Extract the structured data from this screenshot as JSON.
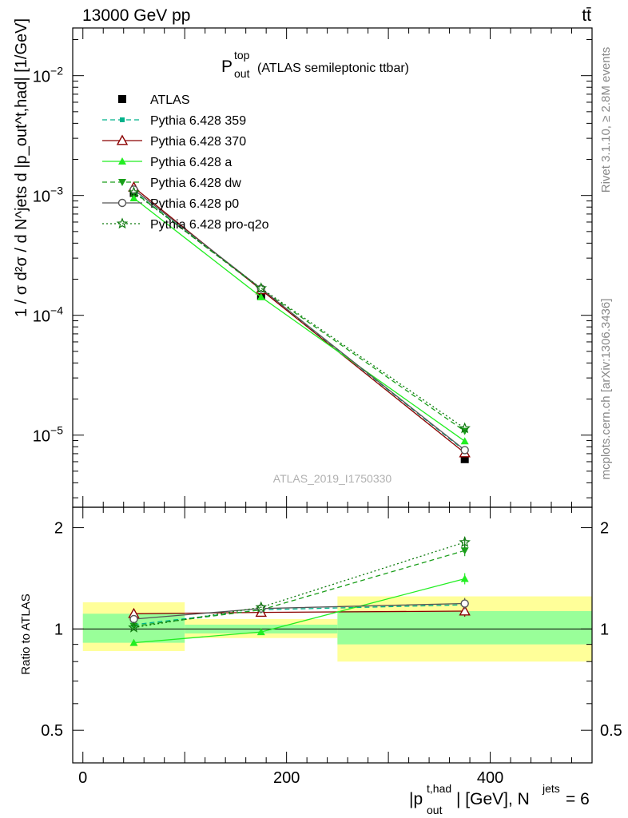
{
  "header": {
    "left": "13000 GeV pp",
    "right": "tt̄"
  },
  "side": {
    "rivet": "Rivet 3.1.10, ≥ 2.8M events",
    "mcplots": "mcplots.cern.ch [arXiv:1306.3436]"
  },
  "watermark": "ATLAS_2019_I1750330",
  "chart_data": [
    {
      "type": "line",
      "title": "P_out^top (ATLAS semileptonic ttbar)",
      "title_parts": {
        "main": "P",
        "sup": "top",
        "sub": "out",
        "rest": "(ATLAS semileptonic ttbar)"
      },
      "ylabel": "1 / σ d²σ / d N^jets d |p_out^t,had| [1/GeV]",
      "y_scale": "log",
      "xlim": [
        -10,
        500
      ],
      "ylim": [
        2.5e-06,
        0.025
      ],
      "legend_position": "top-left",
      "y_ticks": [
        {
          "value": 1e-05,
          "base": "10",
          "exp": "−5"
        },
        {
          "value": 0.0001,
          "base": "10",
          "exp": "−4"
        },
        {
          "value": 0.001,
          "base": "10",
          "exp": "−3"
        },
        {
          "value": 0.01,
          "base": "10",
          "exp": "−2"
        }
      ],
      "series": [
        {
          "name": "ATLAS",
          "color": "#000000",
          "marker": "square-filled",
          "line": "none",
          "x": [
            50,
            175,
            375
          ],
          "y": [
            0.00105,
            0.000145,
            6.3e-06
          ]
        },
        {
          "name": "Pythia 6.428 359",
          "color": "#00b28a",
          "marker": "square-small",
          "line": "dashed",
          "x": [
            50,
            175,
            375
          ],
          "y": [
            0.00108,
            0.000165,
            7.4e-06
          ]
        },
        {
          "name": "Pythia 6.428 370",
          "color": "#8b0000",
          "marker": "triangle-open",
          "line": "solid",
          "x": [
            50,
            175,
            375
          ],
          "y": [
            0.00117,
            0.000163,
            7.1e-06
          ]
        },
        {
          "name": "Pythia 6.428 a",
          "color": "#22ee22",
          "marker": "triangle-filled",
          "line": "solid",
          "x": [
            50,
            175,
            375
          ],
          "y": [
            0.00095,
            0.000142,
            8.9e-06
          ]
        },
        {
          "name": "Pythia 6.428 dw",
          "color": "#1a9e1a",
          "marker": "triangle-down-filled",
          "line": "dashed",
          "x": [
            50,
            175,
            375
          ],
          "y": [
            0.00107,
            0.000165,
            1.08e-05
          ]
        },
        {
          "name": "Pythia 6.428 p0",
          "color": "#555555",
          "marker": "circle-open",
          "line": "solid",
          "x": [
            50,
            175,
            375
          ],
          "y": [
            0.00112,
            0.000167,
            7.5e-06
          ]
        },
        {
          "name": "Pythia 6.428 pro-q2o",
          "color": "#0f7a0f",
          "marker": "star-open",
          "line": "dotted",
          "x": [
            50,
            175,
            375
          ],
          "y": [
            0.00106,
            0.000168,
            1.14e-05
          ]
        }
      ]
    },
    {
      "type": "line",
      "title": "",
      "ylabel": "Ratio to ATLAS",
      "xlabel": "|p_out^t,had| [GeV], N^jets = 6",
      "xlabel_parts": {
        "main": "|p",
        "sup": "t,had",
        "sub": "out",
        "mid": "| [GeV], N",
        "sup2": "jets",
        "end": " = 6"
      },
      "y_scale": "log",
      "xlim": [
        -10,
        500
      ],
      "ylim": [
        0.4,
        2.3
      ],
      "x_ticks": [
        0,
        200,
        400
      ],
      "y_ticks": [
        0.5,
        1,
        2
      ],
      "y_tick_labels": [
        "0.5",
        "1",
        "2"
      ],
      "uncertainty_bands": [
        {
          "x": [
            0,
            100
          ],
          "stat": [
            0.91,
            1.11
          ],
          "total": [
            0.86,
            1.2
          ]
        },
        {
          "x": [
            100,
            250
          ],
          "stat": [
            0.97,
            1.03
          ],
          "total": [
            0.94,
            1.07
          ]
        },
        {
          "x": [
            250,
            500
          ],
          "stat": [
            0.9,
            1.13
          ],
          "total": [
            0.8,
            1.25
          ]
        }
      ],
      "series": [
        {
          "name": "Pythia 6.428 359",
          "x": [
            50,
            175,
            375
          ],
          "y": [
            1.03,
            1.14,
            1.18
          ]
        },
        {
          "name": "Pythia 6.428 370",
          "x": [
            50,
            175,
            375
          ],
          "y": [
            1.11,
            1.12,
            1.13
          ]
        },
        {
          "name": "Pythia 6.428 a",
          "x": [
            50,
            175,
            375
          ],
          "y": [
            0.91,
            0.98,
            1.41
          ]
        },
        {
          "name": "Pythia 6.428 dw",
          "x": [
            50,
            175,
            375
          ],
          "y": [
            1.02,
            1.14,
            1.71
          ]
        },
        {
          "name": "Pythia 6.428 p0",
          "x": [
            50,
            175,
            375
          ],
          "y": [
            1.07,
            1.15,
            1.19
          ]
        },
        {
          "name": "Pythia 6.428 pro-q2o",
          "x": [
            50,
            175,
            375
          ],
          "y": [
            1.01,
            1.16,
            1.81
          ]
        }
      ]
    }
  ]
}
